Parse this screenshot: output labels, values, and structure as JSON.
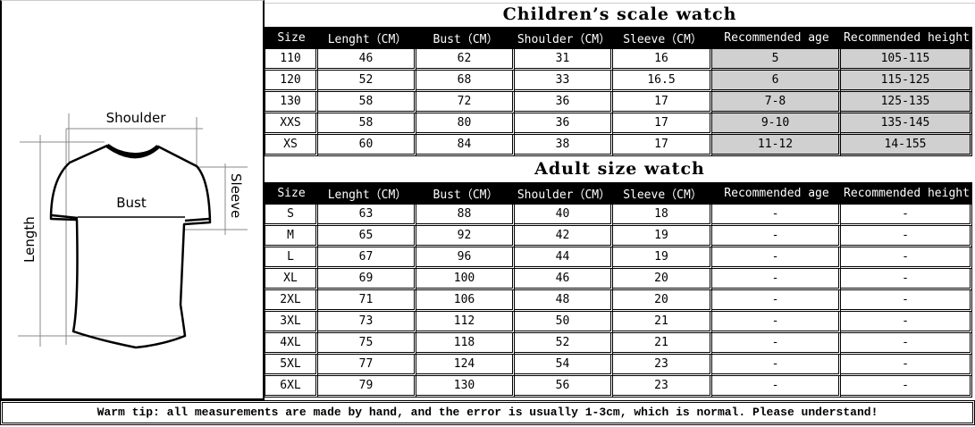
{
  "diagram": {
    "labels": {
      "shoulder": "Shoulder",
      "bust": "Bust",
      "sleeve": "Sleeve",
      "length": "Length"
    }
  },
  "children": {
    "title": "Children’s scale watch",
    "headers": [
      "Size",
      "Lenght（CM）",
      "Bust（CM）",
      "Shoulder（CM）",
      "Sleeve（CM）",
      "Recommended age",
      "Recommended height"
    ],
    "rows": [
      [
        "110",
        "46",
        "62",
        "31",
        "16",
        "5",
        "105-115"
      ],
      [
        "120",
        "52",
        "68",
        "33",
        "16.5",
        "6",
        "115-125"
      ],
      [
        "130",
        "58",
        "72",
        "36",
        "17",
        "7-8",
        "125-135"
      ],
      [
        "XXS",
        "58",
        "80",
        "36",
        "17",
        "9-10",
        "135-145"
      ],
      [
        "XS",
        "60",
        "84",
        "38",
        "17",
        "11-12",
        "14-155"
      ]
    ]
  },
  "adult": {
    "title": "Adult size watch",
    "headers": [
      "Size",
      "Lenght（CM）",
      "Bust（CM）",
      "Shoulder（CM）",
      "Sleeve（CM）",
      "Recommended age",
      "Recommended height"
    ],
    "rows": [
      [
        "S",
        "63",
        "88",
        "40",
        "18",
        "-",
        "-"
      ],
      [
        "M",
        "65",
        "92",
        "42",
        "19",
        "-",
        "-"
      ],
      [
        "L",
        "67",
        "96",
        "44",
        "19",
        "-",
        "-"
      ],
      [
        "XL",
        "69",
        "100",
        "46",
        "20",
        "-",
        "-"
      ],
      [
        "2XL",
        "71",
        "106",
        "48",
        "20",
        "-",
        "-"
      ],
      [
        "3XL",
        "73",
        "112",
        "50",
        "21",
        "-",
        "-"
      ],
      [
        "4XL",
        "75",
        "118",
        "52",
        "21",
        "-",
        "-"
      ],
      [
        "5XL",
        "77",
        "124",
        "54",
        "23",
        "-",
        "-"
      ],
      [
        "6XL",
        "79",
        "130",
        "56",
        "23",
        "-",
        "-"
      ]
    ]
  },
  "footer": "Warm tip: all measurements are made by hand, and the error is usually 1-3cm, which is normal. Please understand!",
  "colors": {
    "header_bg": "#000000",
    "shaded_cell": "#d0d0d0"
  }
}
